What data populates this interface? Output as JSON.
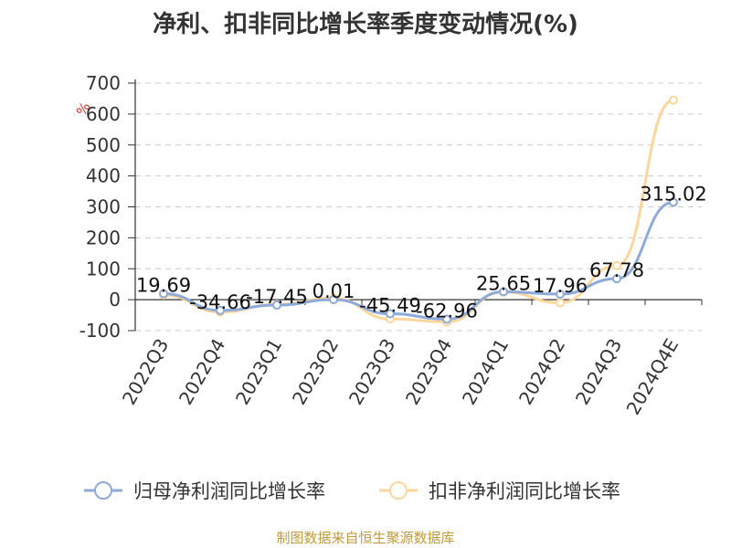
{
  "chart_data": {
    "type": "line",
    "title": "净利、扣非同比增长率季度变动情况(%)",
    "ylabel": "%",
    "categories": [
      "2022Q3",
      "2022Q4",
      "2023Q1",
      "2023Q2",
      "2023Q3",
      "2023Q4",
      "2024Q1",
      "2024Q2",
      "2024Q3",
      "2024Q4E"
    ],
    "ylim": [
      -100,
      700
    ],
    "yticks": [
      700,
      600,
      500,
      400,
      300,
      200,
      100,
      0,
      -100
    ],
    "grid": true,
    "legend_position": "bottom",
    "series": [
      {
        "name": "归母净利润同比增长率",
        "color": "#8eaadb",
        "values": [
          19.69,
          -34.66,
          -17.45,
          0.01,
          -45.49,
          -62.96,
          25.65,
          17.96,
          67.78,
          315.02
        ],
        "labels": [
          "19.69",
          "-34.66",
          "-17.45",
          "0.01",
          "-45.49",
          "-62.96",
          "25.65",
          "17.96",
          "67.78",
          "315.02"
        ]
      },
      {
        "name": "扣非净利润同比增长率",
        "color": "#fcd69a",
        "values": [
          15,
          -40,
          -15,
          5,
          -62,
          -72,
          25,
          -10,
          110,
          645
        ]
      }
    ]
  },
  "source_note": "制图数据来自恒生聚源数据库"
}
